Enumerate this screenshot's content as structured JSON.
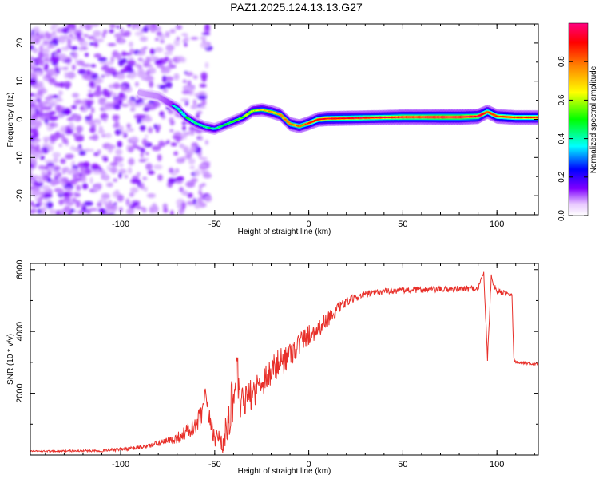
{
  "title": "PAZ1.2025.124.13.13.G27",
  "chart_data": [
    {
      "type": "heatmap",
      "xlabel": "Height of straight line (km)",
      "ylabel": "Frequency (Hz)",
      "xlim": [
        -148,
        122
      ],
      "ylim": [
        -25,
        25
      ],
      "xticks": [
        -100,
        -50,
        0,
        50,
        100
      ],
      "yticks": [
        -20,
        -10,
        0,
        10,
        20
      ],
      "colorbar": {
        "label": "Normalized spectral amplitude",
        "range": [
          0,
          1
        ],
        "ticks": [
          "0.0",
          "0.2",
          "0.4",
          "0.6",
          "0.8"
        ],
        "colormap": [
          "#ffffff",
          "#8000ff",
          "#0000ff",
          "#00ffff",
          "#00ff00",
          "#ffff00",
          "#ff8000",
          "#ff0000",
          "#ff0080"
        ]
      },
      "ridge": {
        "x": [
          -90,
          -80,
          -75,
          -70,
          -65,
          -60,
          -55,
          -50,
          -45,
          -40,
          -35,
          -30,
          -25,
          -20,
          -15,
          -10,
          -5,
          0,
          5,
          10,
          20,
          30,
          40,
          50,
          60,
          70,
          80,
          90,
          95,
          100,
          110,
          122
        ],
        "y": [
          7,
          6,
          4.5,
          3,
          0.5,
          -1,
          -2,
          -2.5,
          -1.5,
          -0.5,
          0.5,
          2.2,
          2.5,
          2.0,
          1.2,
          -1.2,
          -1.8,
          -1.0,
          0.0,
          0.2,
          0.3,
          0.4,
          0.5,
          0.6,
          0.6,
          0.6,
          0.6,
          0.8,
          2.0,
          0.8,
          0.5,
          0.5
        ],
        "amplitude": [
          0.15,
          0.2,
          0.3,
          0.4,
          0.45,
          0.45,
          0.45,
          0.45,
          0.45,
          0.5,
          0.55,
          0.6,
          0.65,
          0.7,
          0.7,
          0.75,
          0.75,
          0.8,
          0.85,
          0.9,
          0.9,
          0.9,
          0.9,
          0.95,
          0.95,
          1.0,
          1.0,
          0.95,
          0.8,
          0.85,
          0.85,
          0.85
        ]
      }
    },
    {
      "type": "line",
      "xlabel": "Height of straight line (km)",
      "ylabel": "SNR (10 * v/v)",
      "xlim": [
        -148,
        122
      ],
      "ylim": [
        0,
        6200
      ],
      "xticks": [
        -100,
        -50,
        0,
        50,
        100
      ],
      "yticks": [
        2000,
        4000,
        6000
      ],
      "series": [
        {
          "color": "#e8302a",
          "x": [
            -148,
            -130,
            -110,
            -95,
            -85,
            -75,
            -70,
            -65,
            -60,
            -57,
            -55,
            -53,
            -50,
            -45,
            -42,
            -40,
            -38,
            -37,
            -35,
            -30,
            -25,
            -20,
            -15,
            -10,
            -5,
            0,
            5,
            10,
            15,
            20,
            25,
            30,
            35,
            40,
            50,
            60,
            70,
            80,
            90,
            93,
            95,
            97,
            99,
            100,
            105,
            108,
            109,
            110,
            115,
            122
          ],
          "y": [
            120,
            130,
            140,
            200,
            300,
            450,
            550,
            750,
            900,
            1300,
            1900,
            1200,
            600,
            450,
            1300,
            2000,
            2800,
            1600,
            1700,
            2000,
            2400,
            2700,
            3000,
            3300,
            3600,
            3900,
            4100,
            4400,
            4700,
            4950,
            5100,
            5200,
            5250,
            5300,
            5330,
            5350,
            5360,
            5370,
            5400,
            5900,
            3100,
            5800,
            5400,
            5300,
            5250,
            5200,
            3100,
            3000,
            2980,
            2950
          ],
          "noise": [
            20,
            30,
            40,
            60,
            80,
            120,
            180,
            250,
            350,
            400,
            300,
            300,
            350,
            500,
            700,
            800,
            700,
            600,
            500,
            500,
            500,
            500,
            500,
            450,
            400,
            350,
            300,
            250,
            200,
            150,
            120,
            100,
            100,
            100,
            100,
            100,
            100,
            100,
            100,
            100,
            100,
            100,
            100,
            100,
            100,
            60,
            50,
            50,
            50,
            50
          ]
        }
      ]
    }
  ]
}
